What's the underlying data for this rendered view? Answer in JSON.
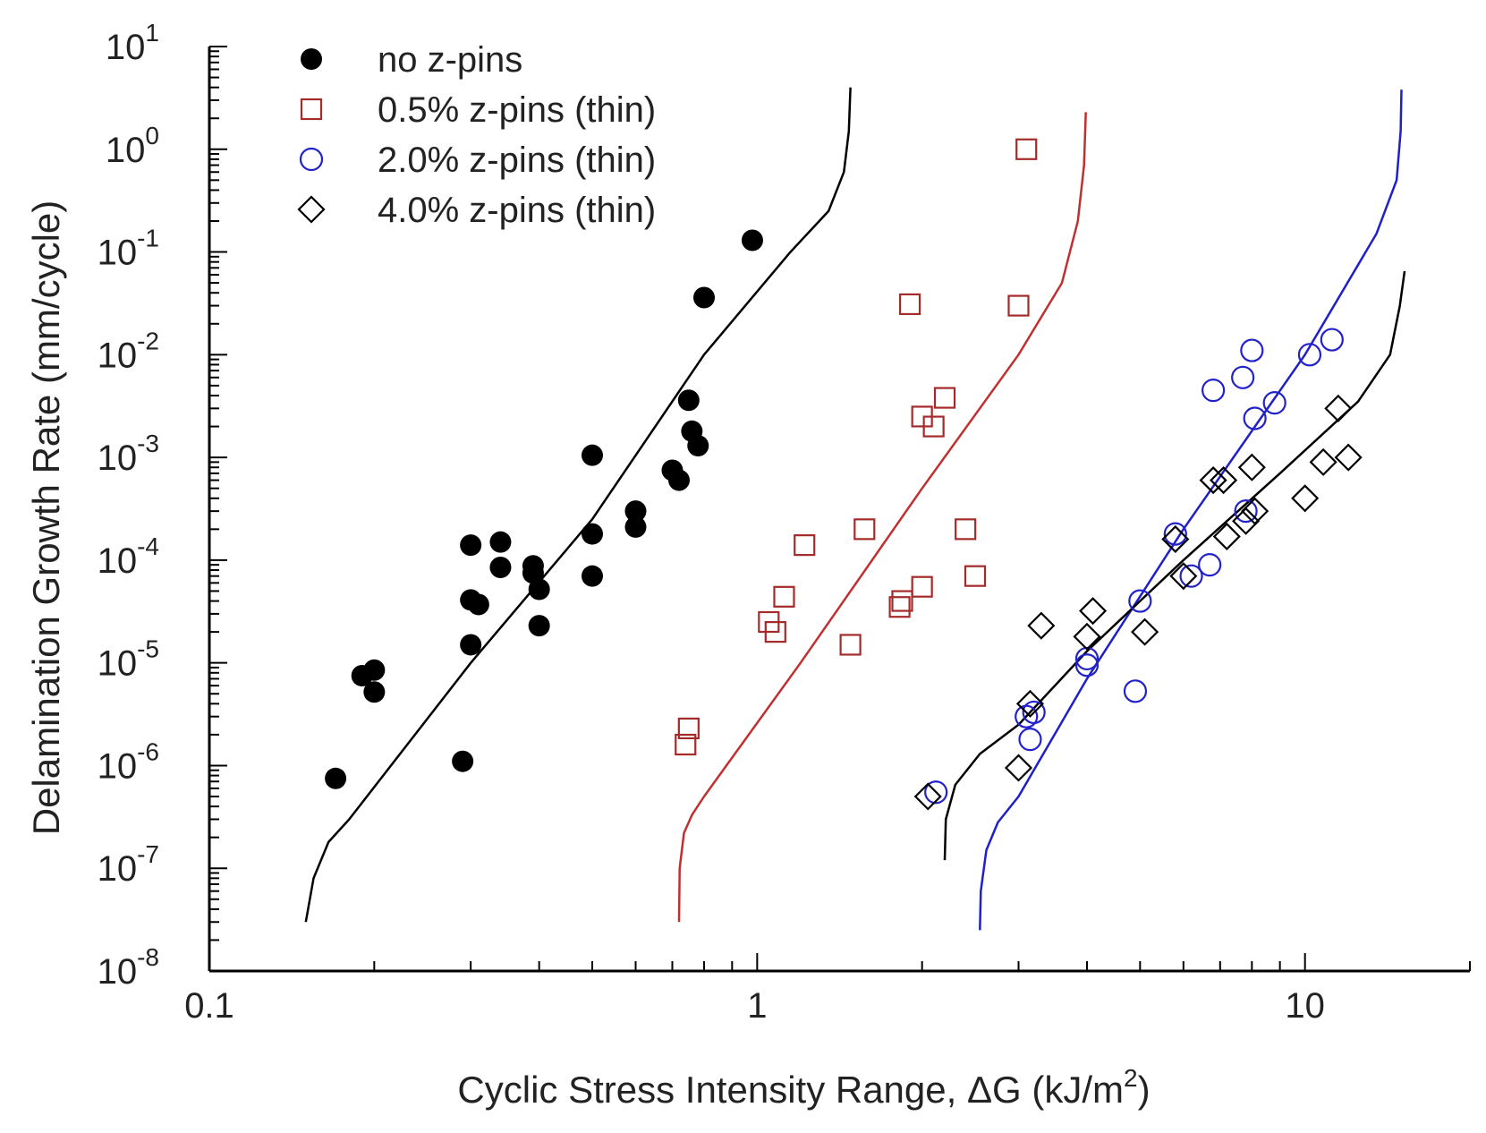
{
  "chart_data": {
    "type": "scatter",
    "title": "",
    "xscale": "log",
    "yscale": "log",
    "xlim": [
      0.1,
      20
    ],
    "ylim": [
      1e-08,
      10
    ],
    "xlabel": "Cyclic Stress Intensity Range, ΔG (kJ/m",
    "xlabel_sup": "2",
    "xlabel_end": ")",
    "ylabel": "Delamination Growth Rate (mm/cycle)",
    "x_ticks": [
      {
        "value": 0.1,
        "label": "0.1"
      },
      {
        "value": 1,
        "label": "1"
      },
      {
        "value": 10,
        "label": "10"
      }
    ],
    "y_ticks": [
      {
        "value": 1e-08,
        "base": "10",
        "exp": "-8"
      },
      {
        "value": 1e-07,
        "base": "10",
        "exp": "-7"
      },
      {
        "value": 1e-06,
        "base": "10",
        "exp": "-6"
      },
      {
        "value": 1e-05,
        "base": "10",
        "exp": "-5"
      },
      {
        "value": 0.0001,
        "base": "10",
        "exp": "-4"
      },
      {
        "value": 0.001,
        "base": "10",
        "exp": "-3"
      },
      {
        "value": 0.01,
        "base": "10",
        "exp": "-2"
      },
      {
        "value": 0.1,
        "base": "10",
        "exp": "-1"
      },
      {
        "value": 1,
        "base": "10",
        "exp": "0"
      },
      {
        "value": 10,
        "base": "10",
        "exp": "1"
      }
    ],
    "legend_position": "top-left",
    "series": [
      {
        "name": "no z-pins",
        "marker": "filled-circle",
        "color": "#000000",
        "points": [
          [
            0.17,
            7.5e-07
          ],
          [
            0.19,
            7.5e-06
          ],
          [
            0.2,
            8.5e-06
          ],
          [
            0.2,
            5.2e-06
          ],
          [
            0.29,
            1.1e-06
          ],
          [
            0.3,
            0.00014
          ],
          [
            0.3,
            4.1e-05
          ],
          [
            0.3,
            1.5e-05
          ],
          [
            0.31,
            3.7e-05
          ],
          [
            0.34,
            0.00015
          ],
          [
            0.34,
            8.5e-05
          ],
          [
            0.39,
            8.8e-05
          ],
          [
            0.39,
            7.5e-05
          ],
          [
            0.4,
            5.2e-05
          ],
          [
            0.4,
            2.3e-05
          ],
          [
            0.5,
            0.00105
          ],
          [
            0.5,
            0.00018
          ],
          [
            0.5,
            7e-05
          ],
          [
            0.6,
            0.0003
          ],
          [
            0.6,
            0.00021
          ],
          [
            0.7,
            0.00075
          ],
          [
            0.72,
            0.0006
          ],
          [
            0.75,
            0.0036
          ],
          [
            0.76,
            0.0018
          ],
          [
            0.78,
            0.0013
          ],
          [
            0.8,
            0.036
          ],
          [
            0.98,
            0.13
          ]
        ]
      },
      {
        "name": "0.5% z-pins (thin)",
        "marker": "open-square",
        "color": "#a52a2a",
        "points": [
          [
            0.74,
            1.6e-06
          ],
          [
            0.75,
            2.3e-06
          ],
          [
            1.05,
            2.5e-05
          ],
          [
            1.08,
            2e-05
          ],
          [
            1.12,
            4.4e-05
          ],
          [
            1.22,
            0.00014
          ],
          [
            1.48,
            1.5e-05
          ],
          [
            1.57,
            0.0002
          ],
          [
            1.82,
            3.5e-05
          ],
          [
            1.84,
            4e-05
          ],
          [
            1.9,
            0.031
          ],
          [
            2.0,
            0.0025
          ],
          [
            2.0,
            5.5e-05
          ],
          [
            2.1,
            0.002
          ],
          [
            2.2,
            0.0038
          ],
          [
            2.4,
            0.0002
          ],
          [
            2.5,
            7e-05
          ],
          [
            3.0,
            0.03
          ],
          [
            3.1,
            1.0
          ]
        ]
      },
      {
        "name": "2.0% z-pins (thin)",
        "marker": "open-circle",
        "color": "#2222cc",
        "points": [
          [
            2.12,
            5.5e-07
          ],
          [
            3.1,
            3e-06
          ],
          [
            3.15,
            1.8e-06
          ],
          [
            3.2,
            3.3e-06
          ],
          [
            4.0,
            9.5e-06
          ],
          [
            4.0,
            1.1e-05
          ],
          [
            4.9,
            5.3e-06
          ],
          [
            5.0,
            4e-05
          ],
          [
            5.8,
            0.00018
          ],
          [
            6.2,
            7e-05
          ],
          [
            6.7,
            9e-05
          ],
          [
            6.8,
            0.0045
          ],
          [
            7.7,
            0.006
          ],
          [
            8.0,
            0.011
          ],
          [
            8.1,
            0.0024
          ],
          [
            8.8,
            0.0034
          ],
          [
            7.8,
            0.0003
          ],
          [
            10.2,
            0.01
          ],
          [
            11.2,
            0.014
          ]
        ]
      },
      {
        "name": "4.0% z-pins (thin)",
        "marker": "open-diamond",
        "color": "#000000",
        "points": [
          [
            2.05,
            5e-07
          ],
          [
            3.0,
            9.5e-07
          ],
          [
            3.15,
            4e-06
          ],
          [
            3.3,
            2.3e-05
          ],
          [
            4.0,
            1.8e-05
          ],
          [
            4.1,
            3.2e-05
          ],
          [
            5.1,
            2e-05
          ],
          [
            5.8,
            0.00016
          ],
          [
            6.0,
            7e-05
          ],
          [
            6.8,
            0.0006
          ],
          [
            7.1,
            0.0006
          ],
          [
            7.2,
            0.00017
          ],
          [
            7.8,
            0.00024
          ],
          [
            8.0,
            0.0008
          ],
          [
            8.1,
            0.0003
          ],
          [
            10.0,
            0.0004
          ],
          [
            10.8,
            0.0009
          ],
          [
            11.5,
            0.003
          ],
          [
            12.0,
            0.001
          ]
        ]
      }
    ],
    "fit_curves": [
      {
        "for": "no z-pins",
        "color": "#000000",
        "points": [
          [
            0.15,
            3e-08
          ],
          [
            0.155,
            8e-08
          ],
          [
            0.165,
            1.8e-07
          ],
          [
            0.18,
            3e-07
          ],
          [
            0.3,
            1e-05
          ],
          [
            0.5,
            0.00025
          ],
          [
            0.8,
            0.01
          ],
          [
            1.15,
            0.1
          ],
          [
            1.35,
            0.25
          ],
          [
            1.44,
            0.6
          ],
          [
            1.47,
            1.5
          ],
          [
            1.48,
            4
          ]
        ]
      },
      {
        "for": "0.5% z-pins (thin)",
        "color": "#c03030",
        "points": [
          [
            0.72,
            3e-08
          ],
          [
            0.722,
            1e-07
          ],
          [
            0.735,
            2.2e-07
          ],
          [
            0.76,
            3.3e-07
          ],
          [
            0.8,
            5e-07
          ],
          [
            1.2,
            1e-05
          ],
          [
            2.0,
            0.0005
          ],
          [
            3.0,
            0.01
          ],
          [
            3.6,
            0.05
          ],
          [
            3.85,
            0.2
          ],
          [
            3.95,
            0.7
          ],
          [
            3.98,
            2.3
          ]
        ]
      },
      {
        "for": "2.0% z-pins (thin)",
        "color": "#2020c8",
        "points": [
          [
            2.55,
            2.5e-08
          ],
          [
            2.56,
            6e-08
          ],
          [
            2.62,
            1.5e-07
          ],
          [
            2.75,
            2.8e-07
          ],
          [
            3.0,
            5e-07
          ],
          [
            4.0,
            7e-06
          ],
          [
            6.0,
            0.0002
          ],
          [
            10.0,
            0.01
          ],
          [
            13.5,
            0.15
          ],
          [
            14.7,
            0.5
          ],
          [
            14.95,
            1.5
          ],
          [
            15.0,
            3.8
          ]
        ]
      },
      {
        "for": "4.0% z-pins (thin)",
        "color": "#000000",
        "points": [
          [
            2.2,
            1.2e-07
          ],
          [
            2.21,
            3e-07
          ],
          [
            2.3,
            6.5e-07
          ],
          [
            2.55,
            1.3e-06
          ],
          [
            3.0,
            2.5e-06
          ],
          [
            4.0,
            1.3e-05
          ],
          [
            6.0,
            0.0001
          ],
          [
            9.0,
            0.0007
          ],
          [
            12.5,
            0.0035
          ],
          [
            14.3,
            0.01
          ],
          [
            14.9,
            0.03
          ],
          [
            15.2,
            0.065
          ]
        ]
      }
    ]
  }
}
